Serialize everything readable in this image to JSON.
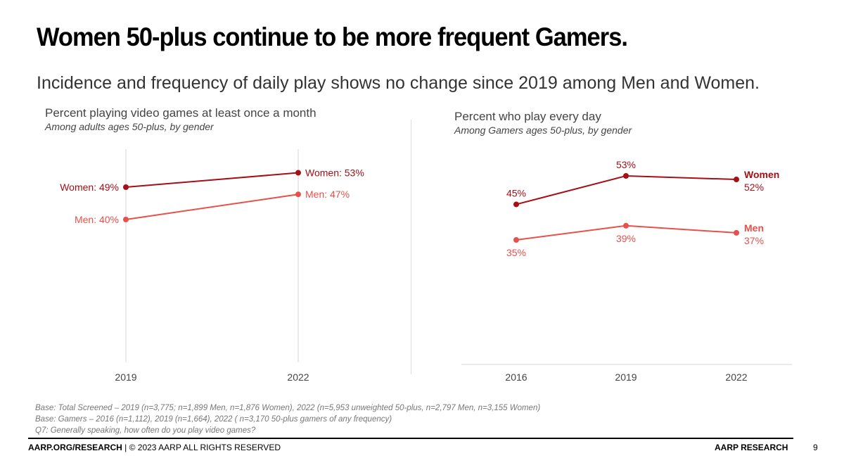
{
  "header": {
    "title": "Women 50-plus continue to be more frequent Gamers.",
    "subtitle": "Incidence and frequency of daily play shows no change since 2019 among Men and Women."
  },
  "colors": {
    "women": "#a50f15",
    "men": "#e8504a",
    "grid": "#dddddd",
    "axis_text": "#444444"
  },
  "chart_data": [
    {
      "type": "line",
      "title": "Percent playing video games at least once a month",
      "subtitle": "Among adults ages 50-plus, by gender",
      "x": [
        "2019",
        "2022"
      ],
      "series": [
        {
          "name": "Women",
          "values": [
            49,
            53
          ],
          "labels": [
            "Women: 49%",
            "Women: 53%"
          ]
        },
        {
          "name": "Men",
          "values": [
            40,
            47
          ],
          "labels": [
            "Men: 40%",
            "Men: 47%"
          ]
        }
      ],
      "ylim": [
        0,
        60
      ],
      "grid": "vertical",
      "legend": "inline-labels"
    },
    {
      "type": "line",
      "title": "Percent who play every day",
      "subtitle": "Among Gamers ages 50-plus, by gender",
      "x": [
        "2016",
        "2019",
        "2022"
      ],
      "series": [
        {
          "name": "Women",
          "values": [
            45,
            53,
            52
          ],
          "labels": [
            "45%",
            "53%",
            "52%"
          ]
        },
        {
          "name": "Men",
          "values": [
            35,
            39,
            37
          ],
          "labels": [
            "35%",
            "39%",
            "37%"
          ]
        }
      ],
      "ylim": [
        0,
        60
      ],
      "grid": "baseline",
      "legend": "right-end-labels"
    }
  ],
  "notes": [
    "Base: Total Screened – 2019 (n=3,775; n=1,899 Men, n=1,876 Women), 2022 (n=5,953 unweighted 50-plus, n=2,797 Men, n=3,155 Women)",
    "Base: Gamers – 2016 (n=1,112), 2019 (n=1,664), 2022 ( n=3,170 50-plus gamers of any frequency)",
    "Q7: Generally speaking, how often do you play video games?"
  ],
  "footer": {
    "site": "AARP.ORG/RESEARCH",
    "rights": " | © 2023 AARP ALL RIGHTS RESERVED",
    "brand": "AARP RESEARCH",
    "page": "9"
  }
}
